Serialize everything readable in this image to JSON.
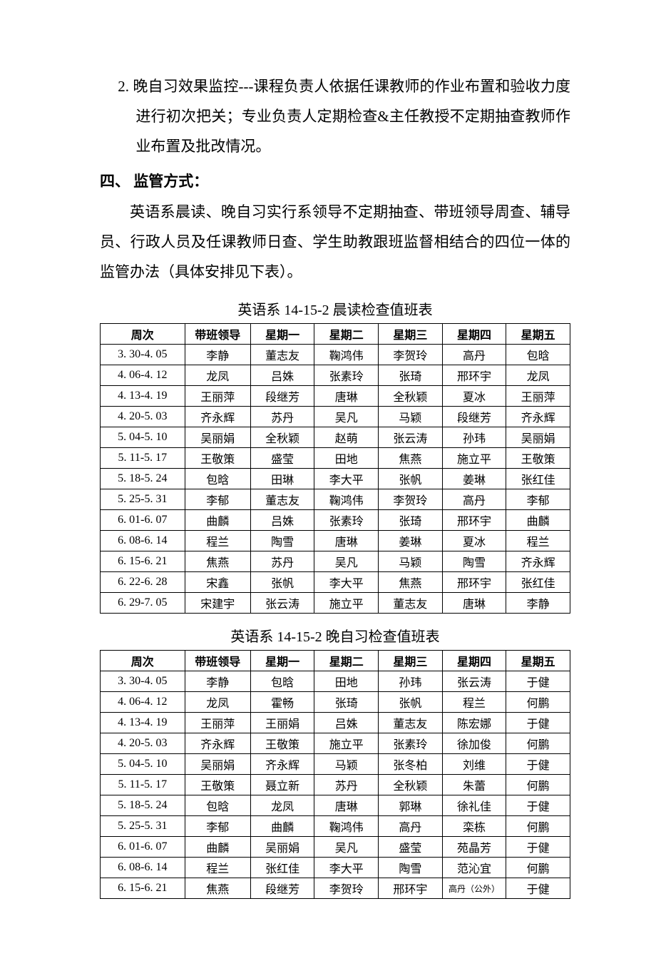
{
  "para1": "2. 晚自习效果监控---课程负责人依据任课教师的作业布置和验收力度进行初次把关；专业负责人定期检查&主任教授不定期抽查教师作业布置及批改情况。",
  "heading4": "四、 监管方式：",
  "para2": "英语系晨读、晚自习实行系领导不定期抽查、带班领导周查、辅导员、行政人员及任课教师日查、学生助教跟班监督相结合的四位一体的监管办法（具体安排见下表）。",
  "table1": {
    "title": "英语系 14-15-2 晨读检查值班表",
    "headers": [
      "周次",
      "带班领导",
      "星期一",
      "星期二",
      "星期三",
      "星期四",
      "星期五"
    ],
    "rows": [
      [
        "3. 30-4. 05",
        "李静",
        "董志友",
        "鞠鸿伟",
        "李贺玲",
        "高丹",
        "包晗"
      ],
      [
        "4. 06-4. 12",
        "龙凤",
        "吕姝",
        "张素玲",
        "张琦",
        "邢环宇",
        "龙凤"
      ],
      [
        "4. 13-4. 19",
        "王丽萍",
        "段继芳",
        "唐琳",
        "全秋颖",
        "夏冰",
        "王丽萍"
      ],
      [
        "4. 20-5. 03",
        "齐永辉",
        "苏丹",
        "吴凡",
        "马颖",
        "段继芳",
        "齐永辉"
      ],
      [
        "5. 04-5. 10",
        "吴丽娟",
        "全秋颖",
        "赵萌",
        "张云涛",
        "孙玮",
        "吴丽娟"
      ],
      [
        "5. 11-5. 17",
        "王敬策",
        "盛莹",
        "田地",
        "焦燕",
        "施立平",
        "王敬策"
      ],
      [
        "5. 18-5. 24",
        "包晗",
        "田琳",
        "李大平",
        "张帆",
        "姜琳",
        "张红佳"
      ],
      [
        "5. 25-5. 31",
        "李郁",
        "董志友",
        "鞠鸿伟",
        "李贺玲",
        "高丹",
        "李郁"
      ],
      [
        "6. 01-6. 07",
        "曲麟",
        "吕姝",
        "张素玲",
        "张琦",
        "邢环宇",
        "曲麟"
      ],
      [
        "6. 08-6. 14",
        "程兰",
        "陶雪",
        "唐琳",
        "姜琳",
        "夏冰",
        "程兰"
      ],
      [
        "6. 15-6. 21",
        "焦燕",
        "苏丹",
        "吴凡",
        "马颖",
        "陶雪",
        "齐永辉"
      ],
      [
        "6. 22-6. 28",
        "宋鑫",
        "张帆",
        "李大平",
        "焦燕",
        "邢环宇",
        "张红佳"
      ],
      [
        "6. 29-7. 05",
        "宋建宇",
        "张云涛",
        "施立平",
        "董志友",
        "唐琳",
        "李静"
      ]
    ]
  },
  "table2": {
    "title": "英语系 14-15-2 晚自习检查值班表",
    "headers": [
      "周次",
      "带班领导",
      "星期一",
      "星期二",
      "星期三",
      "星期四",
      "星期五"
    ],
    "rows": [
      [
        "3. 30-4. 05",
        "李静",
        "包晗",
        "田地",
        "孙玮",
        "张云涛",
        "于健"
      ],
      [
        "4. 06-4. 12",
        "龙凤",
        "霍畅",
        "张琦",
        "张帆",
        "程兰",
        "何鹏"
      ],
      [
        "4. 13-4. 19",
        "王丽萍",
        "王丽娟",
        "吕姝",
        "董志友",
        "陈宏娜",
        "于健"
      ],
      [
        "4. 20-5. 03",
        "齐永辉",
        "王敬策",
        "施立平",
        "张素玲",
        "徐加俊",
        "何鹏"
      ],
      [
        "5. 04-5. 10",
        "吴丽娟",
        "齐永辉",
        "马颖",
        "张冬柏",
        "刘维",
        "于健"
      ],
      [
        "5. 11-5. 17",
        "王敬策",
        "聂立新",
        "苏丹",
        "全秋颖",
        "朱蕾",
        "何鹏"
      ],
      [
        "5. 18-5. 24",
        "包晗",
        "龙凤",
        "唐琳",
        "郭琳",
        "徐礼佳",
        "于健"
      ],
      [
        "5. 25-5. 31",
        "李郁",
        "曲麟",
        "鞠鸿伟",
        "高丹",
        "栾栋",
        "何鹏"
      ],
      [
        "6. 01-6. 07",
        "曲麟",
        "吴丽娟",
        "吴凡",
        "盛莹",
        "苑晶芳",
        "于健"
      ],
      [
        "6. 08-6. 14",
        "程兰",
        "张红佳",
        "李大平",
        "陶雪",
        "范沁宜",
        "何鹏"
      ],
      [
        "6. 15-6. 21",
        "焦燕",
        "段继芳",
        "李贺玲",
        "邢环宇",
        "高丹（公外）",
        "于健"
      ]
    ],
    "small_cell": {
      "row": 10,
      "col": 5
    }
  }
}
